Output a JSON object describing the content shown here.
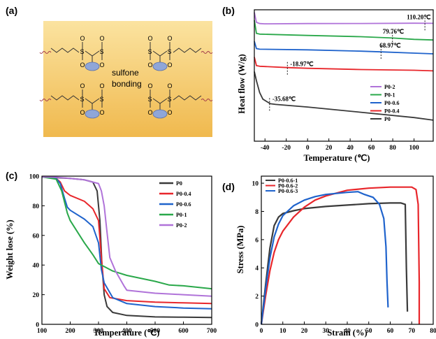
{
  "panel_labels": [
    "(a)",
    "(b)",
    "(c)",
    "(d)"
  ],
  "colors": {
    "P0": "#3a3a3a",
    "P0-0.4": "#e8262b",
    "P0-0.6": "#1f63cc",
    "P0-1": "#2aa84a",
    "P0-2": "#b073d9",
    "stress1": "#3a3a3a",
    "stress2": "#e8262b",
    "stress3": "#1f63cc",
    "schematic_bg_top": "#fbe3a0",
    "schematic_bg_bottom": "#f0b94e",
    "sulfur_s": "#222222",
    "oxygen": "#e8262b",
    "chain": "#a33a4a",
    "oval": "#8fa6d8"
  },
  "schematic": {
    "text_line1": "sulfone",
    "text_line2": "bonding",
    "atom_s": "S",
    "atom_o": "O"
  },
  "chart_data": [
    {
      "id": "b",
      "type": "line",
      "xlabel": "Temperature (℃)",
      "ylabel": "Heat flow (W/g)",
      "xlim": [
        -50,
        118
      ],
      "xticks": [
        -40,
        -20,
        0,
        20,
        40,
        60,
        80,
        100
      ],
      "ylim": [
        0,
        10
      ],
      "legend_position": "bottom-right",
      "series": [
        {
          "name": "P0-2",
          "color_key": "P0-2",
          "x": [
            -50,
            -48,
            -45,
            -40,
            0,
            50,
            100,
            118
          ],
          "y": [
            9.8,
            9.05,
            8.95,
            8.93,
            8.95,
            8.96,
            8.98,
            8.97
          ]
        },
        {
          "name": "P0-1",
          "color_key": "P0-1",
          "x": [
            -50,
            -48,
            -45,
            0,
            50,
            80,
            100,
            118
          ],
          "y": [
            9.2,
            8.2,
            8.15,
            8.05,
            7.95,
            7.85,
            7.75,
            7.7
          ]
        },
        {
          "name": "P0-0.6",
          "color_key": "P0-0.6",
          "x": [
            -50,
            -48,
            -45,
            0,
            50,
            69,
            100,
            118
          ],
          "y": [
            7.6,
            7.05,
            7.0,
            6.95,
            6.85,
            6.8,
            6.7,
            6.65
          ]
        },
        {
          "name": "P0-0.4",
          "color_key": "P0-0.4",
          "x": [
            -50,
            -48,
            -45,
            -19,
            0,
            50,
            100,
            118
          ],
          "y": [
            6.4,
            5.75,
            5.7,
            5.6,
            5.55,
            5.45,
            5.4,
            5.35
          ]
        },
        {
          "name": "P0",
          "color_key": "P0",
          "x": [
            -50,
            -48,
            -45,
            -42,
            -38,
            -35,
            -30,
            0,
            50,
            100,
            118
          ],
          "y": [
            5.3,
            4.6,
            3.7,
            3.2,
            3.0,
            2.85,
            2.8,
            2.6,
            2.2,
            1.8,
            1.6
          ]
        }
      ],
      "annotations": [
        {
          "label": "110.20℃",
          "x": 110.2,
          "y": 8.97
        },
        {
          "label": "79.76℃",
          "x": 79.76,
          "y": 7.86
        },
        {
          "label": "68.97℃",
          "x": 68.97,
          "y": 6.8
        },
        {
          "label": "-18.97℃",
          "x": -18.97,
          "y": 5.6
        },
        {
          "label": "-35.68℃",
          "x": -35.68,
          "y": 2.85
        }
      ]
    },
    {
      "id": "c",
      "type": "line",
      "xlabel": "Temperature (℃)",
      "ylabel": "Weight lose (%)",
      "xlim": [
        100,
        700
      ],
      "xticks": [
        100,
        200,
        300,
        400,
        500,
        600,
        700
      ],
      "ylim": [
        0,
        100
      ],
      "yticks": [
        0,
        20,
        40,
        60,
        80,
        100
      ],
      "legend_position": "top-right",
      "series": [
        {
          "name": "P0",
          "color_key": "P0",
          "x": [
            100,
            150,
            200,
            250,
            280,
            295,
            305,
            312,
            320,
            330,
            350,
            400,
            500,
            600,
            700
          ],
          "y": [
            99.5,
            99,
            98.5,
            97.5,
            96,
            90,
            70,
            40,
            20,
            12,
            8,
            6,
            5,
            4.8,
            4.6
          ]
        },
        {
          "name": "P0-0.4",
          "color_key": "P0-0.4",
          "x": [
            100,
            150,
            165,
            180,
            200,
            250,
            280,
            300,
            310,
            320,
            340,
            400,
            500,
            600,
            700
          ],
          "y": [
            99.5,
            98.5,
            96,
            90,
            87,
            83,
            78,
            70,
            45,
            24,
            18,
            16,
            15,
            14.5,
            14
          ]
        },
        {
          "name": "P0-0.6",
          "color_key": "P0-0.6",
          "x": [
            100,
            150,
            165,
            180,
            190,
            200,
            250,
            280,
            300,
            310,
            320,
            350,
            400,
            500,
            600,
            700
          ],
          "y": [
            99.5,
            98.5,
            95,
            85,
            79,
            77,
            71,
            66,
            55,
            37,
            28,
            18,
            14,
            12,
            11,
            10.5
          ]
        },
        {
          "name": "P0-1",
          "color_key": "P0-1",
          "x": [
            100,
            150,
            170,
            190,
            200,
            220,
            250,
            280,
            300,
            350,
            400,
            500,
            550,
            600,
            700
          ],
          "y": [
            99.5,
            98,
            90,
            75,
            70,
            64,
            55,
            47,
            41,
            36,
            33,
            29,
            26.5,
            26,
            24
          ]
        },
        {
          "name": "P0-2",
          "color_key": "P0-2",
          "x": [
            100,
            150,
            200,
            250,
            300,
            310,
            320,
            330,
            340,
            360,
            390,
            400,
            500,
            600,
            700
          ],
          "y": [
            99.5,
            99.3,
            98.5,
            97.5,
            95,
            90,
            80,
            62,
            45,
            36,
            26,
            23,
            21,
            20,
            19
          ]
        }
      ]
    },
    {
      "id": "d",
      "type": "line",
      "xlabel": "Strain (%)",
      "ylabel": "Stress (MPa)",
      "xlim": [
        0,
        80
      ],
      "xticks": [
        0,
        10,
        20,
        30,
        40,
        50,
        60,
        70,
        80
      ],
      "xtick_labels": [
        "0",
        "10",
        "20",
        "30",
        "40",
        "50",
        "60",
        "70",
        "80"
      ],
      "ylim": [
        0,
        10.5
      ],
      "yticks": [
        0,
        2,
        4,
        6,
        8,
        10
      ],
      "legend_position": "top-left",
      "series": [
        {
          "name": "P0-0.6-1",
          "color_key": "stress1",
          "x": [
            0,
            2,
            4,
            6,
            8,
            10,
            15,
            20,
            30,
            40,
            50,
            60,
            65,
            67,
            67.5,
            68
          ],
          "y": [
            0,
            2.8,
            5.4,
            7.0,
            7.6,
            7.85,
            8.05,
            8.2,
            8.35,
            8.45,
            8.55,
            8.6,
            8.6,
            8.5,
            4.0,
            0.9
          ]
        },
        {
          "name": "P0-0.6-2",
          "color_key": "stress2",
          "x": [
            0,
            2,
            4,
            6,
            8,
            10,
            15,
            20,
            25,
            30,
            40,
            50,
            60,
            70,
            72,
            73,
            73.5,
            73.5
          ],
          "y": [
            0,
            2.0,
            3.8,
            5.1,
            6.0,
            6.6,
            7.6,
            8.3,
            8.8,
            9.1,
            9.5,
            9.65,
            9.72,
            9.72,
            9.55,
            8.5,
            3.0,
            0
          ]
        },
        {
          "name": "P0-0.6-3",
          "color_key": "stress3",
          "x": [
            0,
            2,
            4,
            6,
            8,
            10,
            15,
            20,
            25,
            30,
            40,
            45,
            48,
            52,
            55,
            57,
            58,
            58.5,
            59
          ],
          "y": [
            0,
            2.5,
            4.7,
            6.2,
            7.1,
            7.7,
            8.4,
            8.8,
            9.05,
            9.2,
            9.35,
            9.4,
            9.2,
            9.0,
            8.5,
            7.5,
            5.5,
            3.0,
            1.2
          ]
        }
      ]
    }
  ]
}
